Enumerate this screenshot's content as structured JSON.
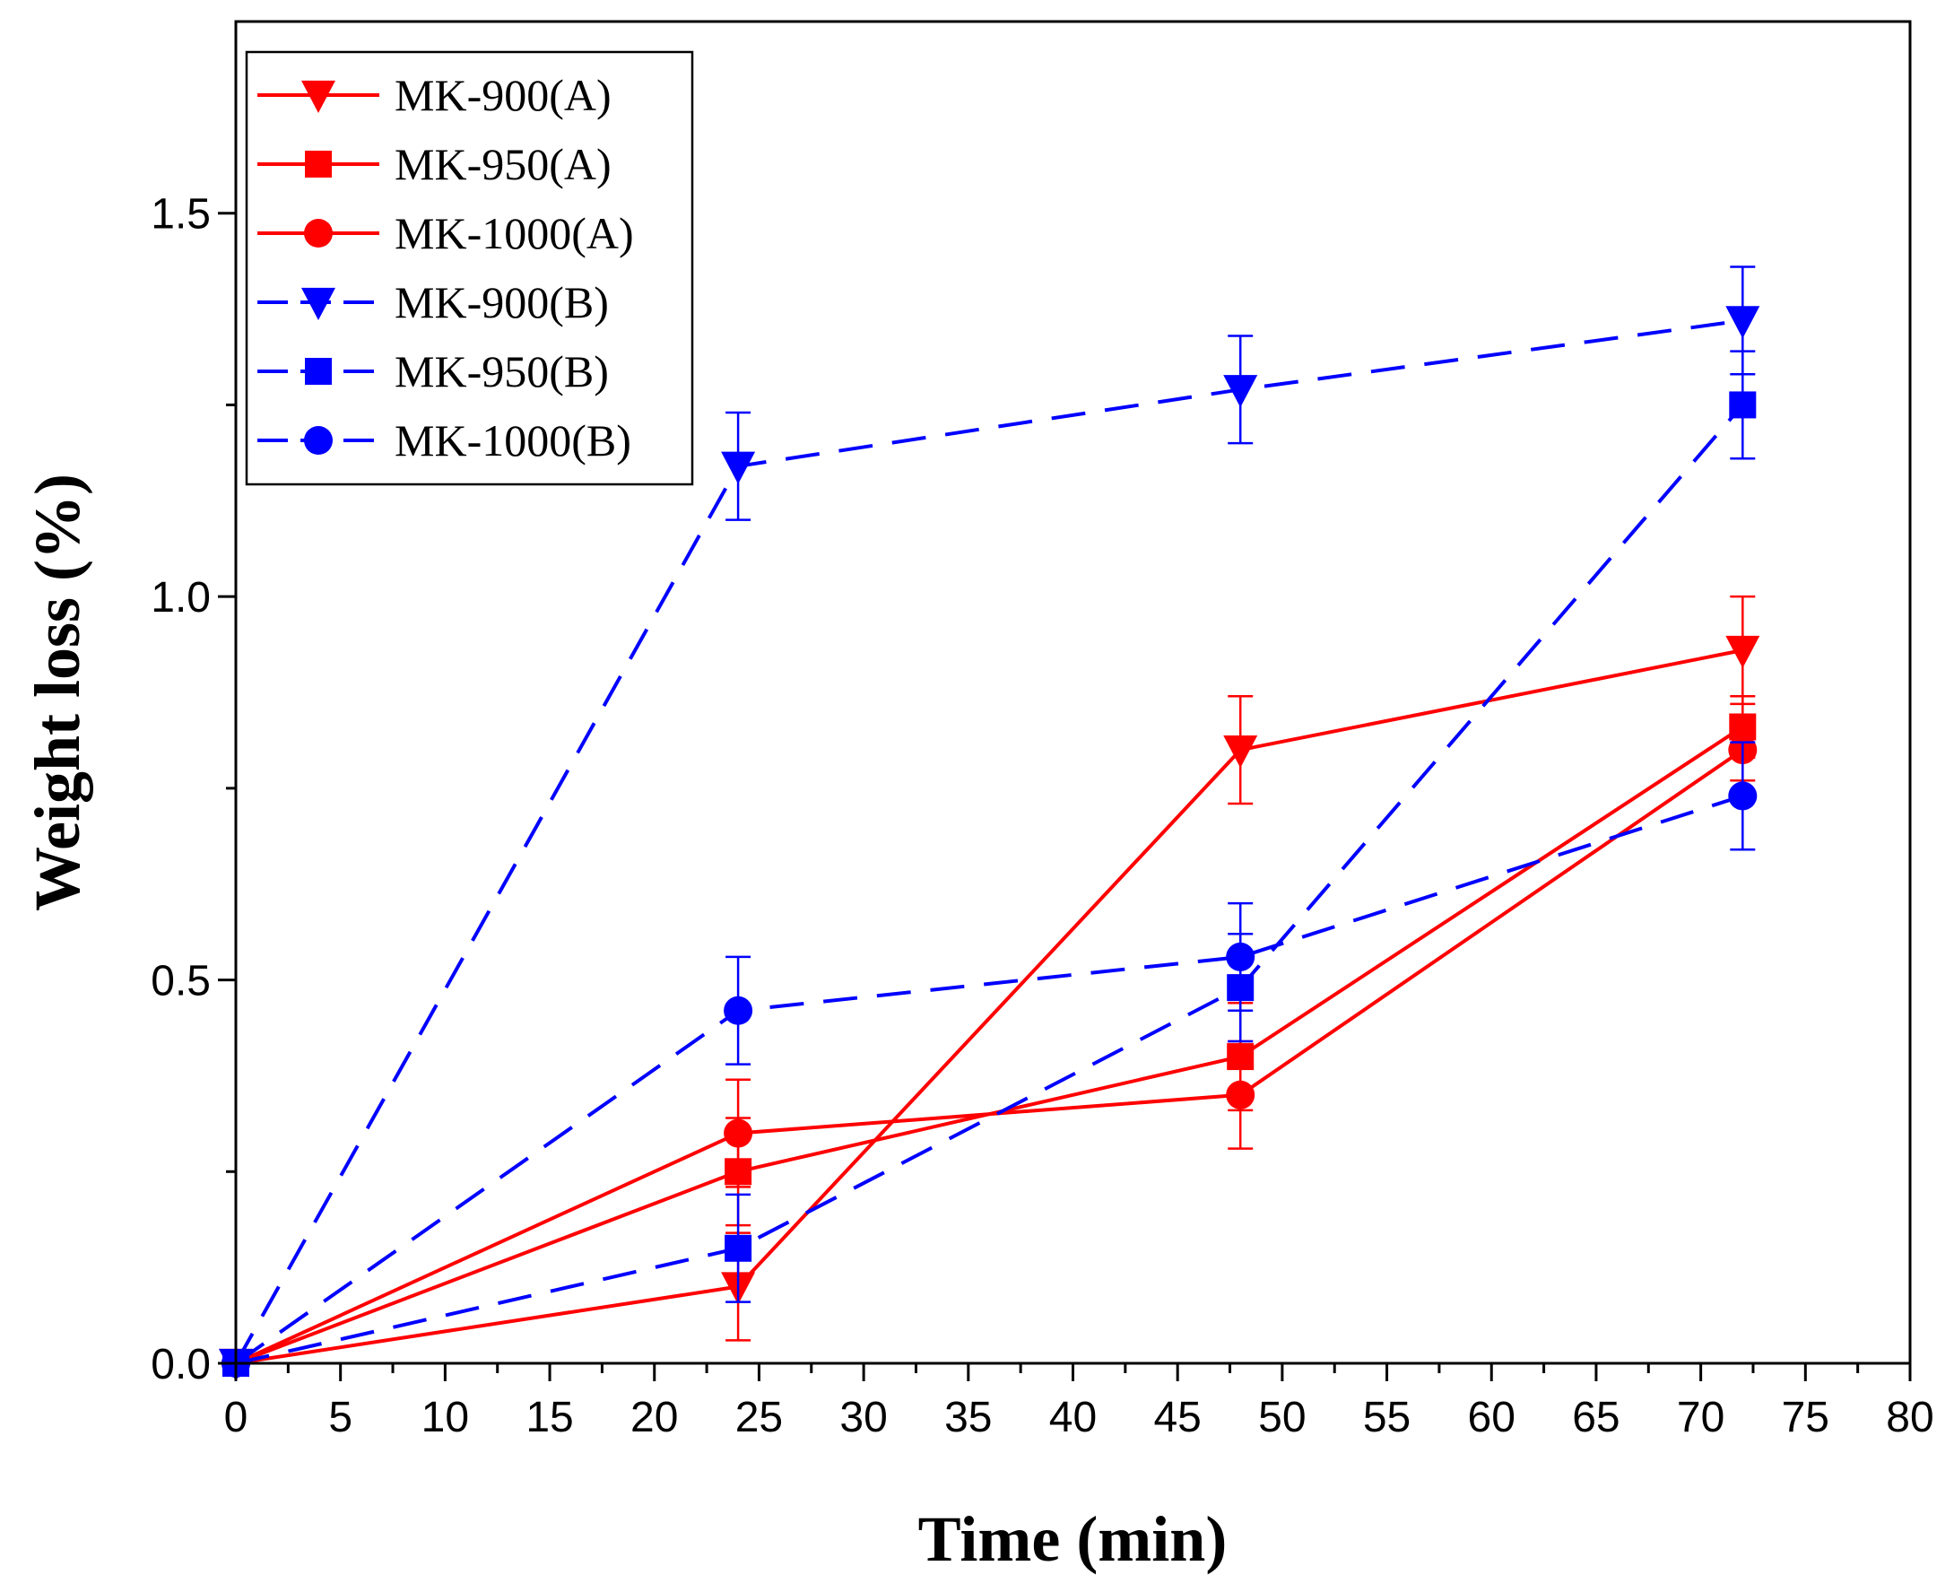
{
  "chart_data": {
    "type": "line",
    "title": "",
    "xlabel": "Time (min)",
    "ylabel": "Weight loss (%)",
    "xlim": [
      0,
      80
    ],
    "ylim": [
      0,
      1.75
    ],
    "xticks": [
      0,
      5,
      10,
      15,
      20,
      25,
      30,
      35,
      40,
      45,
      50,
      55,
      60,
      65,
      70,
      75,
      80
    ],
    "xtick_labels": [
      "0",
      "5",
      "10",
      "15",
      "20",
      "25",
      "30",
      "35",
      "40",
      "45",
      "50",
      "55",
      "60",
      "65",
      "70",
      "75",
      "80"
    ],
    "yticks": [
      0.0,
      0.5,
      1.0,
      1.5
    ],
    "ytick_labels": [
      "0.0",
      "0.5",
      "1.0",
      "1.5"
    ],
    "grid": false,
    "legend_position": "top-left",
    "series": [
      {
        "name": "MK-900(A)",
        "color": "#ff0000",
        "dash": "solid",
        "marker": "triangle-down",
        "x": [
          0,
          24,
          48,
          72
        ],
        "y": [
          0,
          0.1,
          0.8,
          0.93
        ],
        "err": [
          0,
          0.07,
          0.07,
          0.07
        ]
      },
      {
        "name": "MK-950(A)",
        "color": "#ff0000",
        "dash": "solid",
        "marker": "square",
        "x": [
          0,
          24,
          48,
          72
        ],
        "y": [
          0,
          0.25,
          0.4,
          0.83
        ],
        "err": [
          0,
          0.07,
          0.07,
          0.04
        ]
      },
      {
        "name": "MK-1000(A)",
        "color": "#ff0000",
        "dash": "solid",
        "marker": "circle",
        "x": [
          0,
          24,
          48,
          72
        ],
        "y": [
          0,
          0.3,
          0.35,
          0.8
        ],
        "err": [
          0,
          0.07,
          0.07,
          0.04
        ]
      },
      {
        "name": "MK-900(B)",
        "color": "#0000ff",
        "dash": "dashed",
        "marker": "triangle-down",
        "x": [
          0,
          24,
          48,
          72
        ],
        "y": [
          0,
          1.17,
          1.27,
          1.36
        ],
        "err": [
          0,
          0.07,
          0.07,
          0.07
        ]
      },
      {
        "name": "MK-950(B)",
        "color": "#0000ff",
        "dash": "dashed",
        "marker": "square",
        "x": [
          0,
          24,
          48,
          72
        ],
        "y": [
          0,
          0.15,
          0.49,
          1.25
        ],
        "err": [
          0,
          0.07,
          0.07,
          0.07
        ]
      },
      {
        "name": "MK-1000(B)",
        "color": "#0000ff",
        "dash": "dashed",
        "marker": "circle",
        "x": [
          0,
          24,
          48,
          72
        ],
        "y": [
          0,
          0.46,
          0.53,
          0.74
        ],
        "err": [
          0,
          0.07,
          0.07,
          0.07
        ]
      }
    ]
  }
}
